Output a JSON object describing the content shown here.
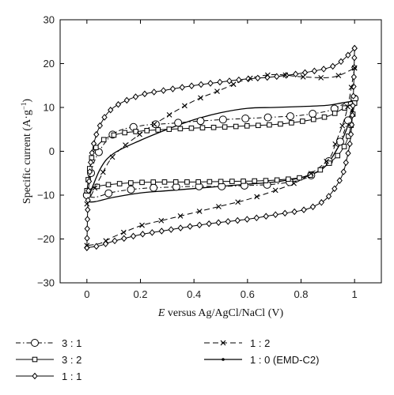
{
  "chart_data": {
    "type": "line",
    "xlabel": "E versus Ag/AgCl/NaCl (V)",
    "xlabel_italic_prefix": "E",
    "xlabel_rest": " versus Ag/AgCl/NaCl (V)",
    "ylabel": "Specific current (A·g⁻¹)",
    "ylabel_main": "Specific current (A·g",
    "ylabel_sup": "−1",
    "ylabel_end": ")",
    "xlim": [
      -0.1,
      1.1
    ],
    "ylim": [
      -30,
      30
    ],
    "xticks": [
      0,
      0.2,
      0.4,
      0.6,
      0.8,
      1
    ],
    "xtick_labels": [
      "0",
      "0.2",
      "0.4",
      "0.6",
      "0.8",
      "1"
    ],
    "yticks": [
      -30,
      -20,
      -10,
      0,
      10,
      20,
      30
    ],
    "ytick_labels": [
      "−30",
      "−20",
      "−10",
      "0",
      "10",
      "20",
      "30"
    ],
    "grid": false,
    "legend_position": "bottom",
    "series": [
      {
        "name": "3 : 1",
        "marker": "circle",
        "dash": "6 3 1.5 3",
        "anodic": [
          [
            0,
            -10
          ],
          [
            0.03,
            -2
          ],
          [
            0.1,
            4
          ],
          [
            0.2,
            5.8
          ],
          [
            0.3,
            6.3
          ],
          [
            0.4,
            6.8
          ],
          [
            0.5,
            7.2
          ],
          [
            0.6,
            7.5
          ],
          [
            0.7,
            7.8
          ],
          [
            0.8,
            8.2
          ],
          [
            0.9,
            9.2
          ],
          [
            0.95,
            10.5
          ],
          [
            1,
            12
          ]
        ],
        "cathodic": [
          [
            1,
            12
          ],
          [
            0.97,
            6
          ],
          [
            0.93,
            0
          ],
          [
            0.9,
            -2.5
          ],
          [
            0.85,
            -5
          ],
          [
            0.8,
            -6.5
          ],
          [
            0.7,
            -7.5
          ],
          [
            0.6,
            -7.8
          ],
          [
            0.5,
            -8
          ],
          [
            0.4,
            -8
          ],
          [
            0.3,
            -8.2
          ],
          [
            0.2,
            -8.5
          ],
          [
            0.1,
            -9.3
          ],
          [
            0.03,
            -10.5
          ],
          [
            0,
            -10
          ]
        ]
      },
      {
        "name": "3 : 2",
        "marker": "square",
        "dash": "",
        "anodic": [
          [
            0,
            -9
          ],
          [
            0.02,
            -1
          ],
          [
            0.06,
            2.5
          ],
          [
            0.12,
            4
          ],
          [
            0.2,
            4.6
          ],
          [
            0.3,
            5
          ],
          [
            0.4,
            5.3
          ],
          [
            0.5,
            5.5
          ],
          [
            0.6,
            5.8
          ],
          [
            0.7,
            6.1
          ],
          [
            0.8,
            6.8
          ],
          [
            0.9,
            8
          ],
          [
            0.95,
            9.5
          ],
          [
            1,
            11
          ]
        ],
        "cathodic": [
          [
            1,
            11
          ],
          [
            0.98,
            4
          ],
          [
            0.95,
            0
          ],
          [
            0.9,
            -3
          ],
          [
            0.85,
            -5
          ],
          [
            0.8,
            -6
          ],
          [
            0.7,
            -6.6
          ],
          [
            0.6,
            -6.8
          ],
          [
            0.5,
            -6.9
          ],
          [
            0.4,
            -7
          ],
          [
            0.3,
            -7
          ],
          [
            0.2,
            -7.1
          ],
          [
            0.1,
            -7.5
          ],
          [
            0.04,
            -8
          ],
          [
            0,
            -9
          ]
        ]
      },
      {
        "name": "1 : 1",
        "marker": "diamond",
        "dash": "",
        "anodic": [
          [
            0,
            -22
          ],
          [
            0.005,
            -10
          ],
          [
            0.02,
            0
          ],
          [
            0.05,
            6
          ],
          [
            0.1,
            10
          ],
          [
            0.2,
            12.8
          ],
          [
            0.3,
            14
          ],
          [
            0.4,
            15
          ],
          [
            0.5,
            15.8
          ],
          [
            0.6,
            16.5
          ],
          [
            0.7,
            17
          ],
          [
            0.8,
            17.8
          ],
          [
            0.9,
            19
          ],
          [
            0.95,
            20.5
          ],
          [
            1,
            23.5
          ]
        ],
        "cathodic": [
          [
            1,
            23.5
          ],
          [
            0.995,
            12
          ],
          [
            0.985,
            3
          ],
          [
            0.97,
            -2
          ],
          [
            0.95,
            -6
          ],
          [
            0.9,
            -10.5
          ],
          [
            0.85,
            -12.5
          ],
          [
            0.8,
            -13.5
          ],
          [
            0.7,
            -14.5
          ],
          [
            0.6,
            -15.5
          ],
          [
            0.5,
            -16.2
          ],
          [
            0.4,
            -17
          ],
          [
            0.3,
            -18
          ],
          [
            0.2,
            -19
          ],
          [
            0.1,
            -20.5
          ],
          [
            0.05,
            -21.5
          ],
          [
            0,
            -22
          ]
        ]
      },
      {
        "name": "1 : 2",
        "marker": "cross",
        "dash": "7 4",
        "anodic": [
          [
            0,
            -12
          ],
          [
            0.05,
            -6
          ],
          [
            0.1,
            -1
          ],
          [
            0.2,
            4
          ],
          [
            0.3,
            8
          ],
          [
            0.4,
            11.5
          ],
          [
            0.5,
            14
          ],
          [
            0.6,
            16.5
          ],
          [
            0.7,
            17.5
          ],
          [
            0.8,
            17
          ],
          [
            0.9,
            16.8
          ],
          [
            0.95,
            17.5
          ],
          [
            1,
            19
          ]
        ],
        "cathodic": [
          [
            1,
            19
          ],
          [
            0.97,
            9
          ],
          [
            0.93,
            2
          ],
          [
            0.9,
            -2
          ],
          [
            0.8,
            -6.5
          ],
          [
            0.7,
            -9
          ],
          [
            0.6,
            -11
          ],
          [
            0.5,
            -12.5
          ],
          [
            0.4,
            -14
          ],
          [
            0.3,
            -15.5
          ],
          [
            0.2,
            -17
          ],
          [
            0.1,
            -19.5
          ],
          [
            0.05,
            -21
          ],
          [
            0,
            -21.5
          ]
        ]
      },
      {
        "name": "1 : 0  (EMD-C2)",
        "marker": "dot",
        "dash": "",
        "anodic": [
          [
            0,
            -11.5
          ],
          [
            0.05,
            -4
          ],
          [
            0.1,
            -0.5
          ],
          [
            0.2,
            2.5
          ],
          [
            0.3,
            5
          ],
          [
            0.4,
            7.2
          ],
          [
            0.5,
            8.8
          ],
          [
            0.6,
            9.8
          ],
          [
            0.7,
            10
          ],
          [
            0.8,
            10.2
          ],
          [
            0.9,
            10.5
          ],
          [
            0.95,
            11
          ],
          [
            1,
            11.5
          ]
        ],
        "cathodic": [
          [
            1,
            11.5
          ],
          [
            0.97,
            5
          ],
          [
            0.93,
            0
          ],
          [
            0.88,
            -4
          ],
          [
            0.8,
            -6
          ],
          [
            0.7,
            -7
          ],
          [
            0.6,
            -7.5
          ],
          [
            0.5,
            -8
          ],
          [
            0.4,
            -8.5
          ],
          [
            0.3,
            -9
          ],
          [
            0.2,
            -9.5
          ],
          [
            0.1,
            -10.5
          ],
          [
            0.03,
            -11.5
          ],
          [
            0,
            -11.5
          ]
        ]
      }
    ]
  }
}
